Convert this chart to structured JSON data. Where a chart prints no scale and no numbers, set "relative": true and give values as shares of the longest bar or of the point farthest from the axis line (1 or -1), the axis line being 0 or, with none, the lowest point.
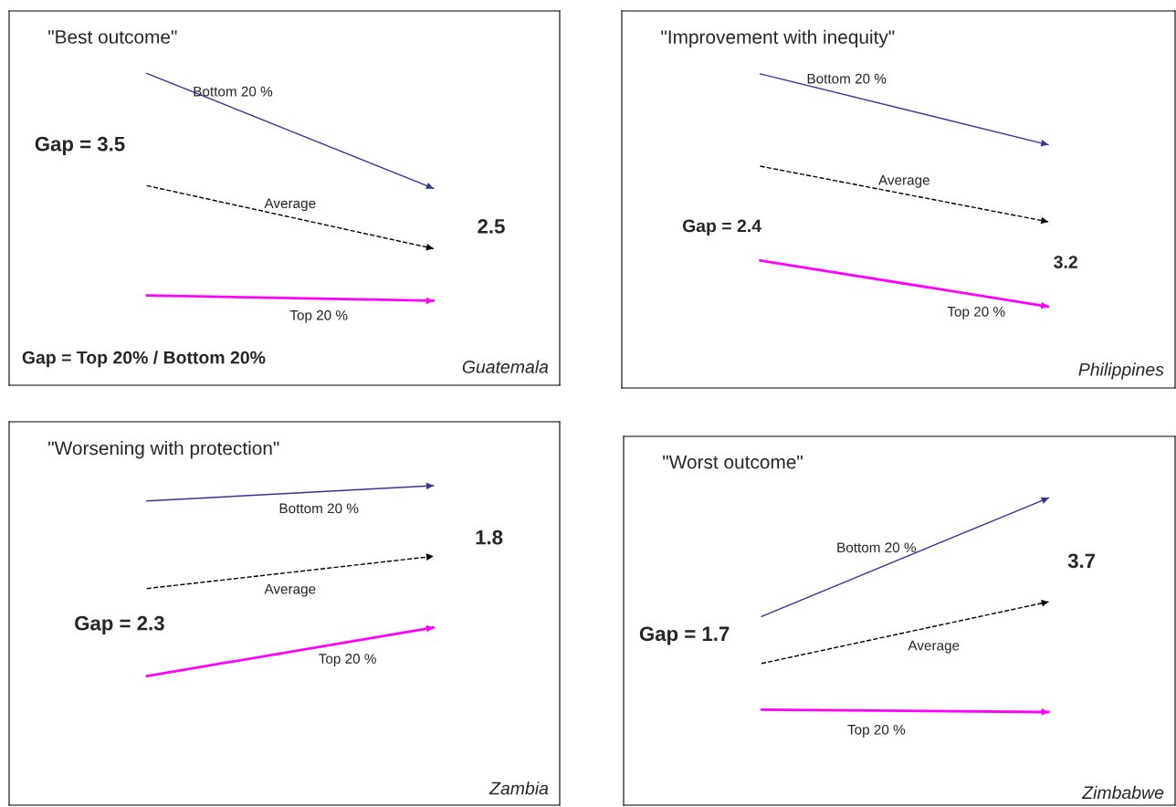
{
  "chart_data": [
    {
      "type": "line",
      "relative": true,
      "title": "\"Best outcome\"",
      "categories": [
        null,
        null
      ],
      "series": [
        {
          "name": "Bottom 20 %",
          "color": "#333399",
          "line_style": "solid",
          "values": [
            1,
            0.631
          ]
        },
        {
          "name": "Average",
          "color": "#000000",
          "line_style": "dashed",
          "values": [
            0.64,
            0.438
          ]
        },
        {
          "name": "Top 20 %",
          "color": "#ff00ff",
          "line_style": "solid",
          "values": [
            0.288,
            0.271
          ]
        }
      ],
      "annotations": [
        "Gap = 3.5",
        "2.5",
        "Guatemala",
        "Gap = Top 20% / Bottom 20%"
      ]
    },
    {
      "type": "line",
      "relative": true,
      "title": "\"Improvement with inequity\"",
      "categories": [
        null,
        null
      ],
      "series": [
        {
          "name": "Bottom 20 %",
          "color": "#333399",
          "line_style": "solid",
          "values": [
            1,
            0.774
          ]
        },
        {
          "name": "Average",
          "color": "#000000",
          "line_style": "dashed",
          "values": [
            0.706,
            0.529
          ]
        },
        {
          "name": "Top 20 %",
          "color": "#ff00ff",
          "line_style": "solid",
          "values": [
            0.406,
            0.259
          ]
        }
      ],
      "annotations": [
        "Gap = 2.4",
        "3.2",
        "Philippines"
      ]
    },
    {
      "type": "line",
      "relative": true,
      "title": "\"Worsening with protection\"",
      "categories": [
        null,
        null
      ],
      "series": [
        {
          "name": "Bottom 20 %",
          "color": "#333399",
          "line_style": "solid",
          "values": [
            0.952,
            1
          ]
        },
        {
          "name": "Average",
          "color": "#000000",
          "line_style": "dashed",
          "values": [
            0.678,
            0.779
          ]
        },
        {
          "name": "Top 20 %",
          "color": "#ff00ff",
          "line_style": "solid",
          "values": [
            0.404,
            0.556
          ]
        }
      ],
      "annotations": [
        "Gap = 2.3",
        "1.8",
        "Zambia"
      ]
    },
    {
      "type": "line",
      "relative": true,
      "title": "\"Worst outcome\"",
      "categories": [
        null,
        null
      ],
      "series": [
        {
          "name": "Bottom 20 %",
          "color": "#333399",
          "line_style": "solid",
          "values": [
            0.614,
            1
          ]
        },
        {
          "name": "Average",
          "color": "#000000",
          "line_style": "dashed",
          "values": [
            0.461,
            0.662
          ]
        },
        {
          "name": "Top 20 %",
          "color": "#ff00ff",
          "line_style": "solid",
          "values": [
            0.311,
            0.303
          ]
        }
      ],
      "annotations": [
        "Gap = 1.7",
        "3.7",
        "Zimbabwe"
      ]
    }
  ]
}
